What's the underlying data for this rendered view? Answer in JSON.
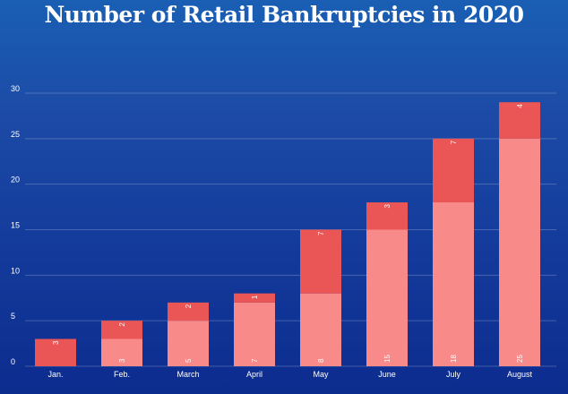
{
  "chart_data": {
    "type": "bar",
    "stacked": true,
    "title": "Number of Retail Bankruptcies in 2020",
    "xlabel": "",
    "ylabel": "",
    "categories": [
      "Jan.",
      "Feb.",
      "March",
      "April",
      "May",
      "June",
      "July",
      "August"
    ],
    "series": [
      {
        "values": [
          0,
          3,
          5,
          7,
          8,
          15,
          18,
          25
        ],
        "color": "#f98a8a"
      },
      {
        "values": [
          3,
          2,
          2,
          1,
          7,
          3,
          7,
          4
        ],
        "color": "#ea5555"
      }
    ],
    "ylim": [
      0,
      30
    ],
    "yticks": [
      0,
      5,
      10,
      15,
      20,
      25,
      30
    ],
    "grid": true,
    "legend": "none"
  }
}
